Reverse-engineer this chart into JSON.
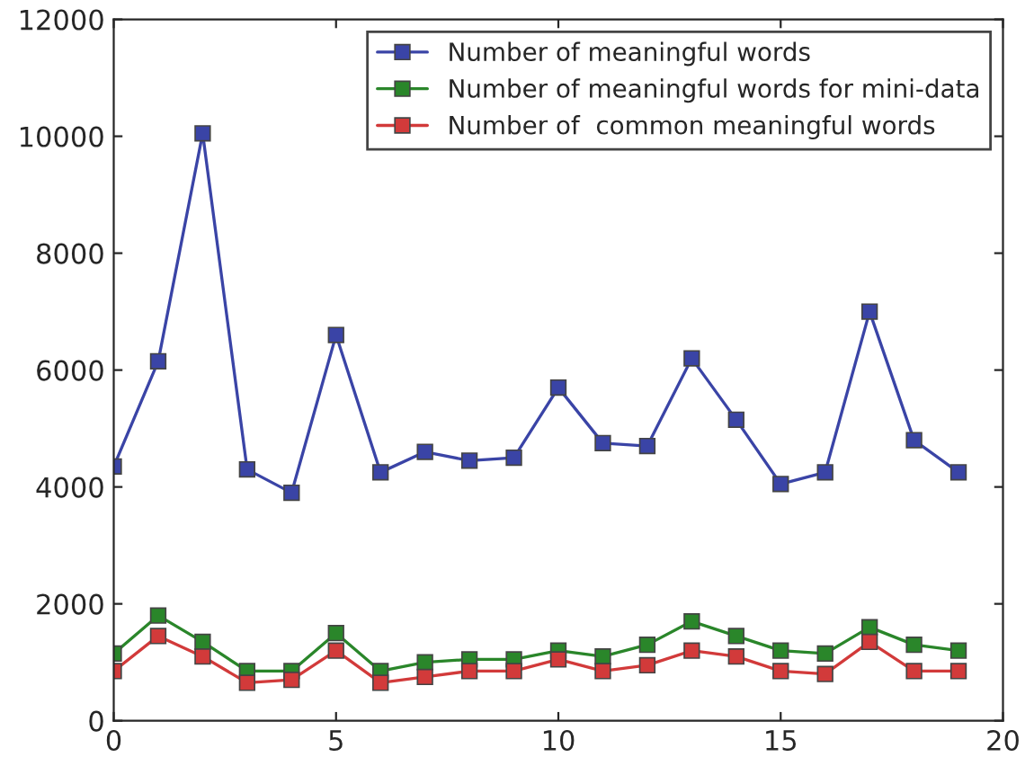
{
  "chart_data": {
    "type": "line",
    "x": [
      0,
      1,
      2,
      3,
      4,
      5,
      6,
      7,
      8,
      9,
      10,
      11,
      12,
      13,
      14,
      15,
      16,
      17,
      18,
      19
    ],
    "series": [
      {
        "name": "Number of meaningful words",
        "color": "#3a44a6",
        "values": [
          4350,
          6150,
          10050,
          4300,
          3900,
          6600,
          4250,
          4600,
          4450,
          4500,
          5700,
          4750,
          4700,
          6200,
          5150,
          4050,
          4250,
          7000,
          4800,
          4250
        ]
      },
      {
        "name": "Number of meaningful words for mini-data",
        "color": "#2a862a",
        "values": [
          1150,
          1800,
          1350,
          850,
          850,
          1500,
          850,
          1000,
          1050,
          1050,
          1200,
          1100,
          1300,
          1700,
          1450,
          1200,
          1150,
          1600,
          1300,
          1200
        ]
      },
      {
        "name": "Number of  common meaningful words",
        "color": "#d23a3a",
        "values": [
          850,
          1450,
          1100,
          650,
          700,
          1200,
          650,
          750,
          850,
          850,
          1050,
          850,
          950,
          1200,
          1100,
          850,
          800,
          1350,
          850,
          850
        ]
      }
    ],
    "xlim": [
      0,
      20
    ],
    "xticks": [
      0,
      5,
      10,
      15,
      20
    ],
    "ylim": [
      0,
      12000
    ],
    "yticks": [
      0,
      2000,
      4000,
      6000,
      8000,
      10000,
      12000
    ],
    "marker": "square",
    "line_style": "solid",
    "legend": "top right",
    "grid": false
  }
}
